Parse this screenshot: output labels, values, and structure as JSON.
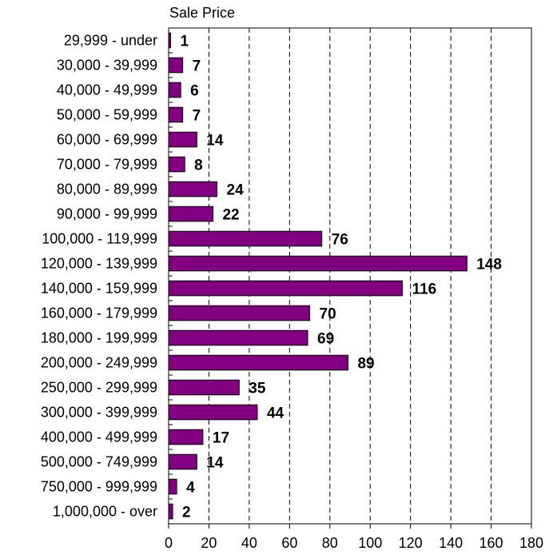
{
  "chart_data": {
    "type": "bar",
    "orientation": "horizontal",
    "title": "Sale Price",
    "xlabel": "",
    "ylabel": "",
    "categories": [
      "29,999 - under",
      "30,000 - 39,999",
      "40,000 - 49,999",
      "50,000 - 59,999",
      "60,000 - 69,999",
      "70,000 - 79,999",
      "80,000 - 89,999",
      "90,000 - 99,999",
      "100,000 - 119,999",
      "120,000 - 139,999",
      "140,000 - 159,999",
      "160,000 - 179,999",
      "180,000 - 199,999",
      "200,000 - 249,999",
      "250,000 - 299,999",
      "300,000 - 399,999",
      "400,000 - 499,999",
      "500,000 - 749,999",
      "750,000 - 999,999",
      "1,000,000 - over"
    ],
    "values": [
      1,
      7,
      6,
      7,
      14,
      8,
      24,
      22,
      76,
      148,
      116,
      70,
      69,
      89,
      35,
      44,
      17,
      14,
      4,
      2
    ],
    "value_labels": [
      "1",
      "7",
      "6",
      "7",
      "14",
      "8",
      "24",
      "22",
      "76",
      "148",
      "116",
      "70",
      "69",
      "89",
      "35",
      "44",
      "17",
      "14",
      "4",
      "2"
    ],
    "xlim": [
      0,
      180
    ],
    "xticks": [
      0,
      20,
      40,
      60,
      80,
      100,
      120,
      140,
      160,
      180
    ],
    "xtick_labels": [
      "0",
      "20",
      "40",
      "60",
      "80",
      "100",
      "120",
      "140",
      "160",
      "180"
    ],
    "grid": "vertical dashed",
    "legend": "none",
    "colors": {
      "bar_fill": "#800080",
      "bar_stroke": "#000000",
      "grid": "#000000",
      "axis": "#000000",
      "background": "#ffffff"
    }
  }
}
